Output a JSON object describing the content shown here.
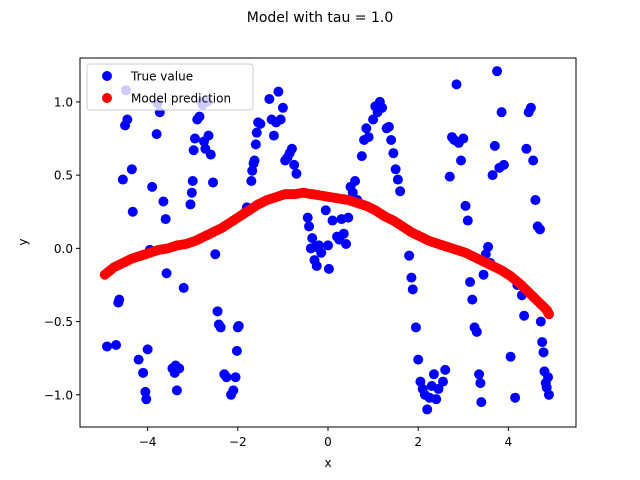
{
  "chart_data": {
    "type": "scatter",
    "title": "Model with tau = 1.0",
    "xlabel": "x",
    "ylabel": "y",
    "xlim": [
      -5.5,
      5.5
    ],
    "ylim": [
      -1.22,
      1.3
    ],
    "xticks": [
      -4,
      -2,
      0,
      2,
      4
    ],
    "yticks": [
      -1.0,
      -0.5,
      0.0,
      0.5,
      1.0
    ],
    "xtick_labels": [
      "−4",
      "−2",
      "0",
      "2",
      "4"
    ],
    "ytick_labels": [
      "−1.0",
      "−0.5",
      "0.0",
      "0.5",
      "1.0"
    ],
    "grid": false,
    "legend_position": "top-left",
    "series": [
      {
        "name": "True value",
        "color": "#0000ff",
        "points": [
          [
            -4.9,
            -0.67
          ],
          [
            -4.7,
            -0.66
          ],
          [
            -4.65,
            -0.37
          ],
          [
            -4.63,
            -0.35
          ],
          [
            -4.55,
            0.47
          ],
          [
            -4.5,
            0.84
          ],
          [
            -4.48,
            1.08
          ],
          [
            -4.45,
            0.88
          ],
          [
            -4.35,
            0.54
          ],
          [
            -4.33,
            0.25
          ],
          [
            -4.2,
            -0.76
          ],
          [
            -4.1,
            -0.85
          ],
          [
            -4.05,
            -0.98
          ],
          [
            -4.03,
            -1.03
          ],
          [
            -4.0,
            -0.69
          ],
          [
            -3.95,
            -0.01
          ],
          [
            -3.9,
            0.42
          ],
          [
            -3.8,
            0.78
          ],
          [
            -3.78,
            0.99
          ],
          [
            -3.73,
            0.93
          ],
          [
            -3.65,
            0.32
          ],
          [
            -3.6,
            0.2
          ],
          [
            -3.58,
            -0.17
          ],
          [
            -3.45,
            -0.82
          ],
          [
            -3.4,
            -0.85
          ],
          [
            -3.38,
            -0.8
          ],
          [
            -3.35,
            -0.97
          ],
          [
            -3.3,
            -0.82
          ],
          [
            -3.2,
            -0.27
          ],
          [
            -3.05,
            0.3
          ],
          [
            -3.02,
            0.38
          ],
          [
            -3.0,
            0.46
          ],
          [
            -2.98,
            0.67
          ],
          [
            -2.95,
            0.75
          ],
          [
            -2.9,
            0.88
          ],
          [
            -2.85,
            0.9
          ],
          [
            -2.8,
            1.0
          ],
          [
            -2.78,
            0.98
          ],
          [
            -2.75,
            0.73
          ],
          [
            -2.72,
            0.68
          ],
          [
            -2.68,
            1.0
          ],
          [
            -2.65,
            0.77
          ],
          [
            -2.6,
            0.64
          ],
          [
            -2.55,
            0.45
          ],
          [
            -2.5,
            -0.04
          ],
          [
            -2.45,
            -0.43
          ],
          [
            -2.42,
            -0.52
          ],
          [
            -2.38,
            -0.54
          ],
          [
            -2.3,
            -0.86
          ],
          [
            -2.25,
            -0.88
          ],
          [
            -2.15,
            -1.0
          ],
          [
            -2.1,
            -0.97
          ],
          [
            -2.05,
            -0.88
          ],
          [
            -2.02,
            -0.7
          ],
          [
            -2.0,
            -0.54
          ],
          [
            -1.98,
            -0.53
          ],
          [
            -1.8,
            0.28
          ],
          [
            -1.7,
            0.46
          ],
          [
            -1.68,
            0.53
          ],
          [
            -1.65,
            0.58
          ],
          [
            -1.63,
            0.6
          ],
          [
            -1.6,
            0.71
          ],
          [
            -1.58,
            0.79
          ],
          [
            -1.55,
            0.86
          ],
          [
            -1.5,
            0.85
          ],
          [
            -1.3,
            1.02
          ],
          [
            -1.25,
            0.88
          ],
          [
            -1.2,
            0.77
          ],
          [
            -1.15,
            0.86
          ],
          [
            -1.1,
            1.07
          ],
          [
            -1.05,
            0.88
          ],
          [
            -1.0,
            0.96
          ],
          [
            -0.95,
            0.6
          ],
          [
            -0.9,
            0.62
          ],
          [
            -0.85,
            0.65
          ],
          [
            -0.8,
            0.68
          ],
          [
            -0.75,
            0.57
          ],
          [
            -0.7,
            0.51
          ],
          [
            -0.45,
            0.21
          ],
          [
            -0.42,
            0.15
          ],
          [
            -0.38,
            0.0
          ],
          [
            -0.35,
            0.07
          ],
          [
            -0.3,
            -0.08
          ],
          [
            -0.28,
            0.01
          ],
          [
            -0.25,
            -0.12
          ],
          [
            -0.2,
            0.02
          ],
          [
            -0.15,
            -0.03
          ],
          [
            -0.05,
            0.26
          ],
          [
            0.0,
            0.02
          ],
          [
            0.02,
            -0.14
          ],
          [
            0.1,
            0.19
          ],
          [
            0.2,
            0.08
          ],
          [
            0.25,
            0.06
          ],
          [
            0.3,
            0.2
          ],
          [
            0.35,
            0.1
          ],
          [
            0.4,
            0.03
          ],
          [
            0.45,
            0.21
          ],
          [
            0.5,
            0.42
          ],
          [
            0.55,
            0.38
          ],
          [
            0.6,
            0.46
          ],
          [
            0.65,
            0.33
          ],
          [
            0.75,
            0.63
          ],
          [
            0.8,
            0.74
          ],
          [
            0.85,
            0.82
          ],
          [
            0.9,
            0.76
          ],
          [
            1.0,
            0.88
          ],
          [
            1.05,
            0.97
          ],
          [
            1.1,
            0.93
          ],
          [
            1.15,
            1.0
          ],
          [
            1.2,
            0.96
          ],
          [
            1.3,
            0.82
          ],
          [
            1.35,
            0.83
          ],
          [
            1.4,
            0.74
          ],
          [
            1.45,
            0.65
          ],
          [
            1.5,
            0.54
          ],
          [
            1.55,
            0.47
          ],
          [
            1.6,
            0.39
          ],
          [
            1.8,
            -0.05
          ],
          [
            1.85,
            -0.2
          ],
          [
            1.88,
            -0.28
          ],
          [
            1.95,
            -0.54
          ],
          [
            2.0,
            -0.76
          ],
          [
            2.05,
            -0.91
          ],
          [
            2.1,
            -0.96
          ],
          [
            2.15,
            -1.0
          ],
          [
            2.2,
            -1.1
          ],
          [
            2.25,
            -1.02
          ],
          [
            2.3,
            -0.94
          ],
          [
            2.35,
            -0.86
          ],
          [
            2.4,
            -1.03
          ],
          [
            2.45,
            -0.96
          ],
          [
            2.55,
            -0.91
          ],
          [
            2.6,
            -0.83
          ],
          [
            2.7,
            0.49
          ],
          [
            2.75,
            0.76
          ],
          [
            2.8,
            0.74
          ],
          [
            2.85,
            1.12
          ],
          [
            2.9,
            0.72
          ],
          [
            2.95,
            0.6
          ],
          [
            3.0,
            0.75
          ],
          [
            3.05,
            0.29
          ],
          [
            3.1,
            0.19
          ],
          [
            3.15,
            -0.23
          ],
          [
            3.2,
            -0.35
          ],
          [
            3.25,
            -0.54
          ],
          [
            3.3,
            -0.57
          ],
          [
            3.35,
            -0.86
          ],
          [
            3.38,
            -0.92
          ],
          [
            3.4,
            -1.05
          ],
          [
            3.45,
            -0.18
          ],
          [
            3.5,
            -0.04
          ],
          [
            3.55,
            0.01
          ],
          [
            3.6,
            -0.1
          ],
          [
            3.65,
            0.5
          ],
          [
            3.7,
            0.7
          ],
          [
            3.75,
            1.21
          ],
          [
            3.8,
            0.55
          ],
          [
            3.85,
            0.93
          ],
          [
            3.9,
            0.57
          ],
          [
            4.05,
            -0.74
          ],
          [
            4.15,
            -1.02
          ],
          [
            4.2,
            -0.25
          ],
          [
            4.3,
            -0.32
          ],
          [
            4.35,
            -0.46
          ],
          [
            4.4,
            0.68
          ],
          [
            4.45,
            0.93
          ],
          [
            4.5,
            0.96
          ],
          [
            4.55,
            0.6
          ],
          [
            4.6,
            0.33
          ],
          [
            4.65,
            0.15
          ],
          [
            4.7,
            0.13
          ],
          [
            4.72,
            -0.5
          ],
          [
            4.75,
            -0.64
          ],
          [
            4.78,
            -0.71
          ],
          [
            4.8,
            -0.84
          ],
          [
            4.83,
            -0.92
          ],
          [
            4.85,
            -0.95
          ],
          [
            4.88,
            -0.88
          ],
          [
            4.9,
            -1.0
          ]
        ]
      },
      {
        "name": "Model prediction",
        "color": "#ff0000",
        "x": [
          -4.95,
          -4.75,
          -4.55,
          -4.35,
          -4.15,
          -3.95,
          -3.75,
          -3.55,
          -3.35,
          -3.15,
          -2.95,
          -2.75,
          -2.55,
          -2.35,
          -2.15,
          -1.95,
          -1.75,
          -1.55,
          -1.35,
          -1.15,
          -0.95,
          -0.75,
          -0.55,
          -0.35,
          -0.15,
          0.05,
          0.25,
          0.45,
          0.65,
          0.85,
          1.05,
          1.25,
          1.45,
          1.65,
          1.85,
          2.05,
          2.25,
          2.45,
          2.65,
          2.85,
          3.05,
          3.25,
          3.45,
          3.65,
          3.85,
          4.05,
          4.25,
          4.45,
          4.65,
          4.85,
          4.9
        ],
        "y": [
          -0.18,
          -0.13,
          -0.1,
          -0.07,
          -0.05,
          -0.03,
          -0.01,
          0.0,
          0.02,
          0.03,
          0.05,
          0.08,
          0.11,
          0.14,
          0.18,
          0.22,
          0.26,
          0.3,
          0.33,
          0.35,
          0.37,
          0.37,
          0.38,
          0.37,
          0.36,
          0.35,
          0.34,
          0.33,
          0.31,
          0.29,
          0.26,
          0.22,
          0.19,
          0.15,
          0.11,
          0.08,
          0.05,
          0.03,
          0.01,
          -0.01,
          -0.03,
          -0.06,
          -0.09,
          -0.12,
          -0.15,
          -0.19,
          -0.24,
          -0.3,
          -0.36,
          -0.42,
          -0.45
        ]
      }
    ]
  }
}
